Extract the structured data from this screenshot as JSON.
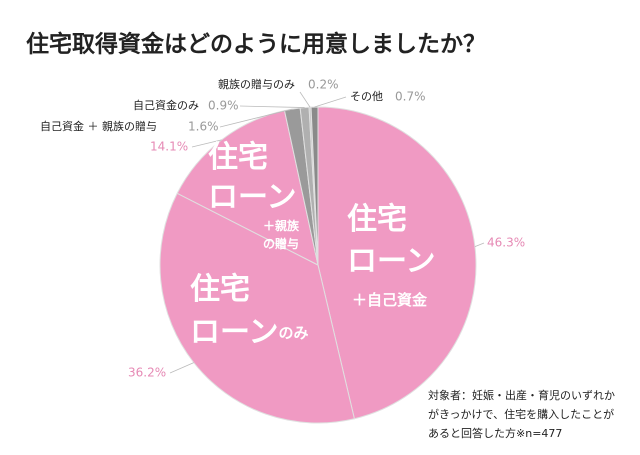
{
  "chart_data": {
    "type": "pie",
    "title": "住宅取得資金はどのように用意しましたか？",
    "categories": [
      "住宅ローン＋自己資金",
      "住宅ローンのみ",
      "住宅ローン＋親族の贈与",
      "自己資金 ＋ 親族の贈与",
      "自己資金のみ",
      "親族の贈与のみ",
      "その他"
    ],
    "values": [
      46.3,
      36.2,
      14.1,
      1.6,
      0.9,
      0.2,
      0.7
    ],
    "value_labels": [
      "46.3%",
      "36.2%",
      "14.1%",
      "1.6%",
      "0.9%",
      "0.2%",
      "0.7%"
    ],
    "colors": [
      "#f09ac3",
      "#f09ac3",
      "#f09ac3",
      "#9a9a9a",
      "#b0b0b0",
      "#c8c8c8",
      "#8a8a8a"
    ],
    "note": [
      "対象者：妊娠・出産・育児のいずれか",
      "がきっかけで、住宅を購入したことが",
      "あると回答した方※n=477"
    ]
  }
}
